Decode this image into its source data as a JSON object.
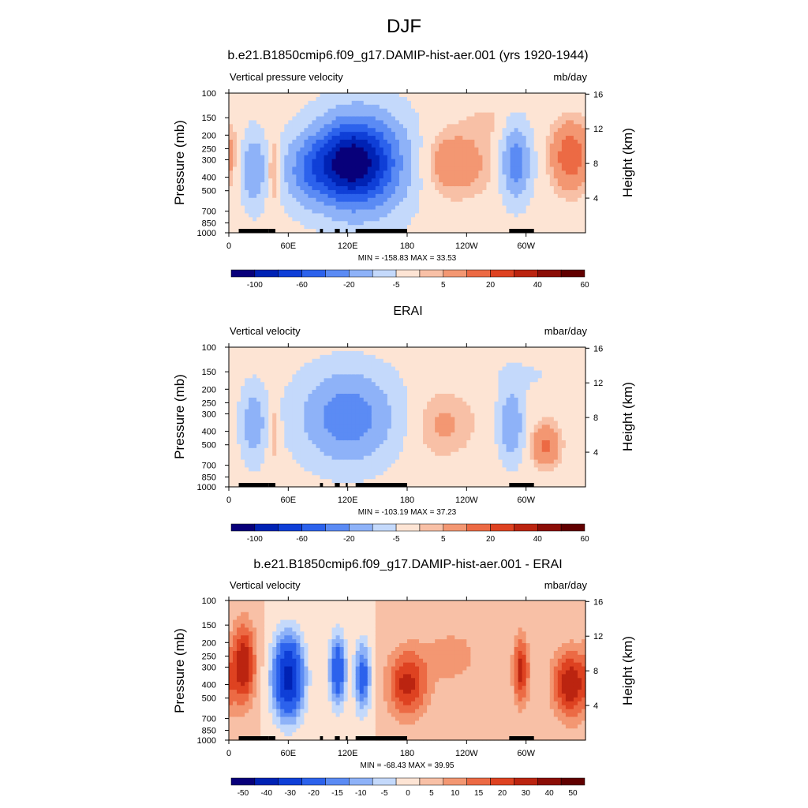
{
  "page_title": "DJF",
  "colors": {
    "palette": [
      "#08007a",
      "#0022b4",
      "#0f3fd7",
      "#2c62ec",
      "#5b8bf4",
      "#8eb2f8",
      "#c4d9fb",
      "#fde4d4",
      "#f8c0a6",
      "#f39772",
      "#ec6a44",
      "#de4221",
      "#bb2410",
      "#8b0d06",
      "#610000"
    ]
  },
  "chart_data": [
    {
      "type": "heatmap",
      "title": "b.e21.B1850cmip6.f09_g17.DAMIP-hist-aer.001 (yrs 1920-1944)",
      "left_label": "Vertical pressure velocity",
      "units": "mb/day",
      "ylabel": "Pressure (mb)",
      "ylabel_right": "Height (km)",
      "x_ticks": [
        "0",
        "60E",
        "120E",
        "180",
        "120W",
        "60W"
      ],
      "y_ticks": [
        "100",
        "150",
        "200",
        "250",
        "300",
        "400",
        "500",
        "700",
        "850",
        "1000"
      ],
      "y_right_ticks": [
        "16",
        "12",
        "8",
        "4"
      ],
      "minmax": "MIN = -158.83  MAX =  33.53",
      "colorbar_labels": [
        "-100",
        "-60",
        "-20",
        "-5",
        "5",
        "20",
        "40",
        "60"
      ],
      "fields": [
        {
          "lon": 140,
          "lev": 0.5,
          "w": 40,
          "h": 0.8,
          "amp": -90
        },
        {
          "lon": 115,
          "lev": 0.5,
          "w": 30,
          "h": 0.7,
          "amp": -70
        },
        {
          "lon": 80,
          "lev": 0.55,
          "w": 25,
          "h": 0.6,
          "amp": -45
        },
        {
          "lon": 25,
          "lev": 0.55,
          "w": 12,
          "h": 0.6,
          "amp": -40
        },
        {
          "lon": 45,
          "lev": 0.55,
          "w": 6,
          "h": 0.6,
          "amp": 20
        },
        {
          "lon": 225,
          "lev": 0.5,
          "w": 40,
          "h": 0.6,
          "amp": 18
        },
        {
          "lon": 290,
          "lev": 0.5,
          "w": 14,
          "h": 0.6,
          "amp": -55
        },
        {
          "lon": 345,
          "lev": 0.45,
          "w": 20,
          "h": 0.6,
          "amp": 28
        },
        {
          "lon": 260,
          "lev": 0.2,
          "w": 20,
          "h": 0.3,
          "amp": 6
        }
      ]
    },
    {
      "type": "heatmap",
      "title": "ERAI",
      "left_label": "Vertical velocity",
      "units": "mbar/day",
      "ylabel": "Pressure (mb)",
      "ylabel_right": "Height (km)",
      "x_ticks": [
        "0",
        "60E",
        "120E",
        "180",
        "120W",
        "60W"
      ],
      "y_ticks": [
        "100",
        "150",
        "200",
        "250",
        "300",
        "400",
        "500",
        "700",
        "850",
        "1000"
      ],
      "y_right_ticks": [
        "16",
        "12",
        "8",
        "4"
      ],
      "minmax": "MIN = -103.19  MAX =  37.23",
      "colorbar_labels": [
        "-100",
        "-60",
        "-20",
        "-5",
        "5",
        "20",
        "40",
        "60"
      ],
      "fields": [
        {
          "lon": 120,
          "lev": 0.5,
          "w": 45,
          "h": 0.75,
          "amp": -55
        },
        {
          "lon": 25,
          "lev": 0.55,
          "w": 12,
          "h": 0.6,
          "amp": -35
        },
        {
          "lon": 45,
          "lev": 0.6,
          "w": 6,
          "h": 0.5,
          "amp": 15
        },
        {
          "lon": 215,
          "lev": 0.55,
          "w": 35,
          "h": 0.6,
          "amp": 12
        },
        {
          "lon": 285,
          "lev": 0.55,
          "w": 12,
          "h": 0.6,
          "amp": -40
        },
        {
          "lon": 320,
          "lev": 0.7,
          "w": 15,
          "h": 0.4,
          "amp": 22
        },
        {
          "lon": 300,
          "lev": 0.2,
          "w": 40,
          "h": 0.3,
          "amp": -6
        }
      ]
    },
    {
      "type": "heatmap",
      "title": "b.e21.B1850cmip6.f09_g17.DAMIP-hist-aer.001 - ERAI",
      "left_label": "Vertical velocity",
      "units": "mbar/day",
      "ylabel": "Pressure (mb)",
      "ylabel_right": "Height (km)",
      "x_ticks": [
        "0",
        "60E",
        "120E",
        "180",
        "120W",
        "60W"
      ],
      "y_ticks": [
        "100",
        "150",
        "200",
        "250",
        "300",
        "400",
        "500",
        "700",
        "850",
        "1000"
      ],
      "y_right_ticks": [
        "16",
        "12",
        "8",
        "4"
      ],
      "minmax": "MIN = -68.43  MAX =  39.95",
      "colorbar_labels": [
        "-50",
        "-40",
        "-30",
        "-20",
        "-15",
        "-10",
        "-5",
        "0",
        "5",
        "10",
        "15",
        "20",
        "30",
        "40",
        "50"
      ],
      "fields": [
        {
          "lon": 15,
          "lev": 0.45,
          "w": 12,
          "h": 0.7,
          "amp": 25
        },
        {
          "lon": 60,
          "lev": 0.55,
          "w": 15,
          "h": 0.7,
          "amp": -45
        },
        {
          "lon": 110,
          "lev": 0.5,
          "w": 8,
          "h": 0.6,
          "amp": -30
        },
        {
          "lon": 135,
          "lev": 0.55,
          "w": 8,
          "h": 0.6,
          "amp": -25
        },
        {
          "lon": 180,
          "lev": 0.6,
          "w": 20,
          "h": 0.6,
          "amp": 22
        },
        {
          "lon": 225,
          "lev": 0.4,
          "w": 30,
          "h": 0.5,
          "amp": 8
        },
        {
          "lon": 295,
          "lev": 0.5,
          "w": 8,
          "h": 0.6,
          "amp": 22
        },
        {
          "lon": 345,
          "lev": 0.6,
          "w": 18,
          "h": 0.6,
          "amp": 25
        }
      ]
    }
  ]
}
